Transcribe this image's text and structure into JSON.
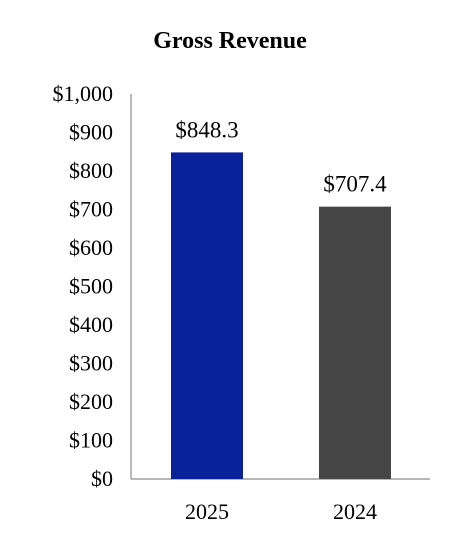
{
  "chart_data": {
    "type": "bar",
    "title": "Gross Revenue",
    "categories": [
      "2025",
      "2024"
    ],
    "values": [
      848.3,
      707.4
    ],
    "value_labels": [
      "$848.3",
      "$707.4"
    ],
    "bar_colors": [
      "#0a2299",
      "#454545"
    ],
    "ylim": [
      0,
      1000
    ],
    "yticks": [
      0,
      100,
      200,
      300,
      400,
      500,
      600,
      700,
      800,
      900,
      1000
    ],
    "ytick_labels": [
      "$0",
      "$100",
      "$200",
      "$300",
      "$400",
      "$500",
      "$600",
      "$700",
      "$800",
      "$900",
      "$1,000"
    ],
    "grid": false,
    "legend": "none"
  }
}
